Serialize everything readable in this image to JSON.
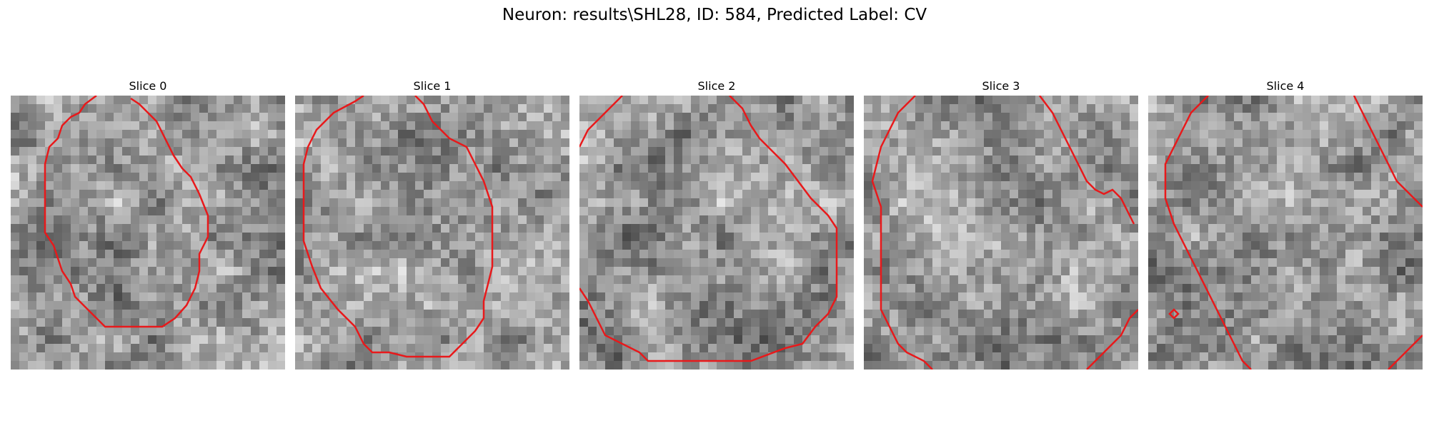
{
  "figure": {
    "title": "Neuron: results\\SHL28, ID: 584, Predicted Label: CV"
  },
  "panels": [
    {
      "title": "Slice 0"
    },
    {
      "title": "Slice 1"
    },
    {
      "title": "Slice 2"
    },
    {
      "title": "Slice 3"
    },
    {
      "title": "Slice 4"
    }
  ],
  "colors": {
    "contour": "#e8191b",
    "colormap": "grayscale"
  }
}
